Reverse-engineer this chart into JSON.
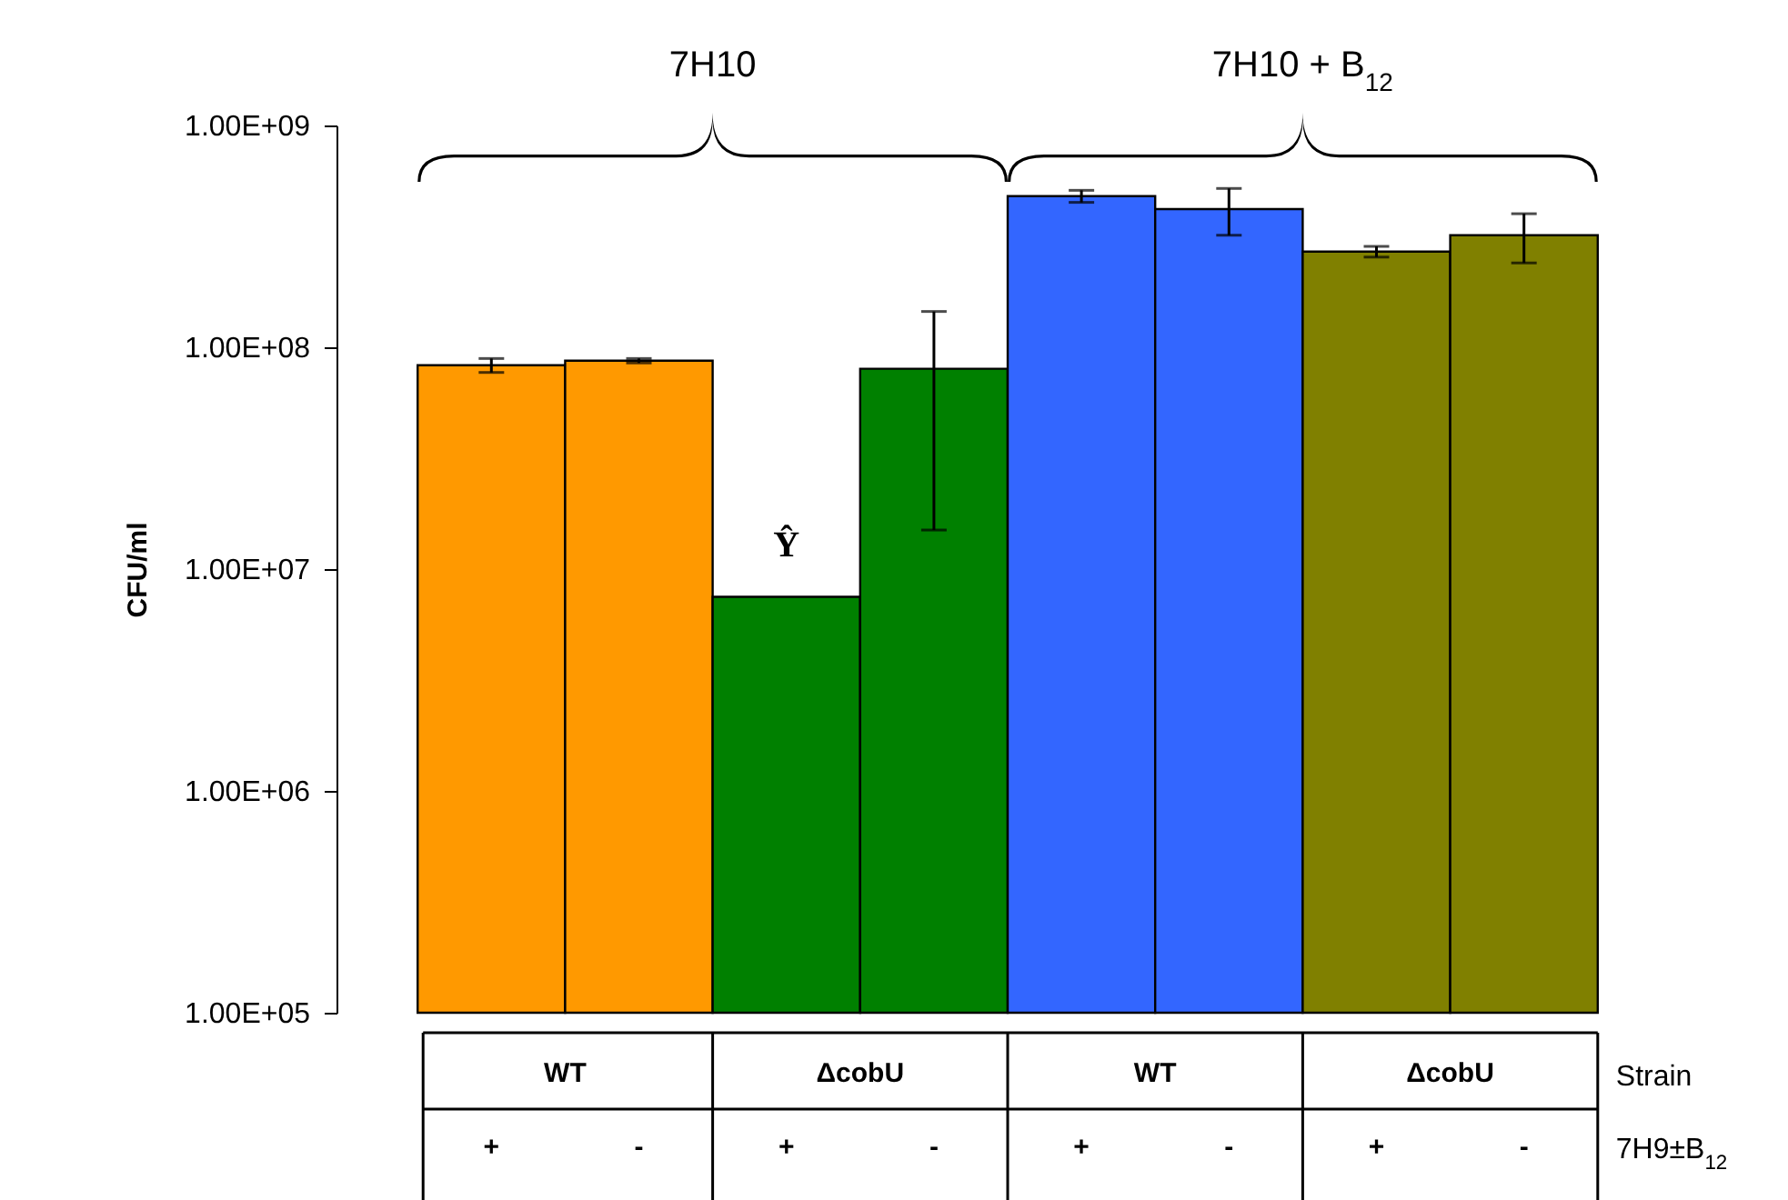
{
  "chart_data": {
    "type": "bar",
    "ylabel": "CFU/ml",
    "log": true,
    "categories": [
      "+",
      "-",
      "+",
      "-",
      "+",
      "-",
      "+",
      "-"
    ],
    "values": [
      83000000,
      87000000,
      7500000,
      80000000,
      480000000,
      420000000,
      270000000,
      320000000
    ],
    "errors": [
      6000000,
      2000000,
      null,
      65000000,
      30000000,
      100000000,
      15000000,
      80000000
    ],
    "colors": [
      "#ff9900",
      "#ff9900",
      "#008000",
      "#008000",
      "#3366ff",
      "#3366ff",
      "#808000",
      "#808000"
    ],
    "ylim": [
      100000,
      1000000000
    ],
    "yticks": [
      {
        "value": 100000,
        "label": "1.00E+05"
      },
      {
        "value": 1000000,
        "label": "1.00E+06"
      },
      {
        "value": 10000000,
        "label": "1.00E+07"
      },
      {
        "value": 100000000,
        "label": "1.00E+08"
      },
      {
        "value": 1000000000,
        "label": "1.00E+09"
      }
    ],
    "grid": false,
    "annotations": [
      "7H10",
      "7H10 + B$_{12}$",
      "Ŷ",
      "WT",
      "ΔcobU",
      "WT",
      "ΔcobU",
      "Strain",
      "7H9±B$_{12}$"
    ]
  }
}
